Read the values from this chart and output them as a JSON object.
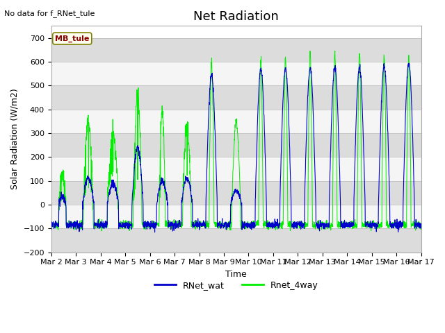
{
  "title": "Net Radiation",
  "xlabel": "Time",
  "ylabel": "Solar Radiation (W/m2)",
  "ylim": [
    -200,
    750
  ],
  "yticks": [
    -200,
    -100,
    0,
    100,
    200,
    300,
    400,
    500,
    600,
    700
  ],
  "xtick_labels": [
    "Mar 2",
    "Mar 3",
    "Mar 4",
    "Mar 5",
    "Mar 6",
    "Mar 7",
    "Mar 8",
    "Mar 9",
    "Mar 10",
    "Mar 11",
    "Mar 12",
    "Mar 13",
    "Mar 14",
    "Mar 15",
    "Mar 16",
    "Mar 17"
  ],
  "no_data_text": "No data for f_RNet_tule",
  "legend_label_text": "MB_tule",
  "color_blue": "#0000CC",
  "color_green": "#00EE00",
  "legend_line1": "RNet_wat",
  "legend_line2": "Rnet_4way",
  "title_fontsize": 13,
  "label_fontsize": 9,
  "tick_fontsize": 8,
  "band_color_dark": "#DCDCDC",
  "band_color_light": "#F5F5F5"
}
